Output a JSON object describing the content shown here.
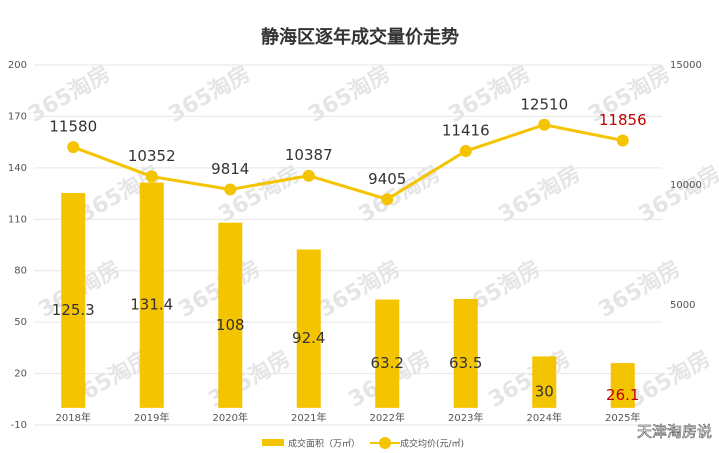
{
  "chart_data": {
    "type": "bar-line",
    "title": "静海区逐年成交量价走势",
    "categories": [
      "2018年",
      "2019年",
      "2020年",
      "2021年",
      "2022年",
      "2023年",
      "2024年",
      "2025年"
    ],
    "series": [
      {
        "name": "成交面积（万㎡）",
        "type": "bar",
        "color": "#f5c400",
        "values": [
          125.3,
          131.4,
          108,
          92.4,
          63.2,
          63.5,
          30,
          26.1
        ],
        "label_colors": [
          "#333333",
          "#333333",
          "#333333",
          "#333333",
          "#333333",
          "#333333",
          "#333333",
          "#c00000"
        ]
      },
      {
        "name": "成交均价(元/㎡)",
        "type": "line",
        "axis": "y2",
        "color": "#f5c400",
        "values": [
          11580,
          10352,
          9814,
          10387,
          9405,
          11416,
          12510,
          11856
        ],
        "label_colors": [
          "#333333",
          "#333333",
          "#333333",
          "#333333",
          "#333333",
          "#333333",
          "#333333",
          "#c00000"
        ]
      }
    ],
    "ylim": [
      -10,
      200
    ],
    "yticks": [
      -10,
      20,
      50,
      80,
      110,
      140,
      170,
      200
    ],
    "y2lim": [
      0,
      15000
    ],
    "y2ticks": [
      5000,
      10000,
      15000
    ],
    "grid": true,
    "legend": "bottom",
    "watermark": "365淘房",
    "source": "天津淘房说"
  }
}
